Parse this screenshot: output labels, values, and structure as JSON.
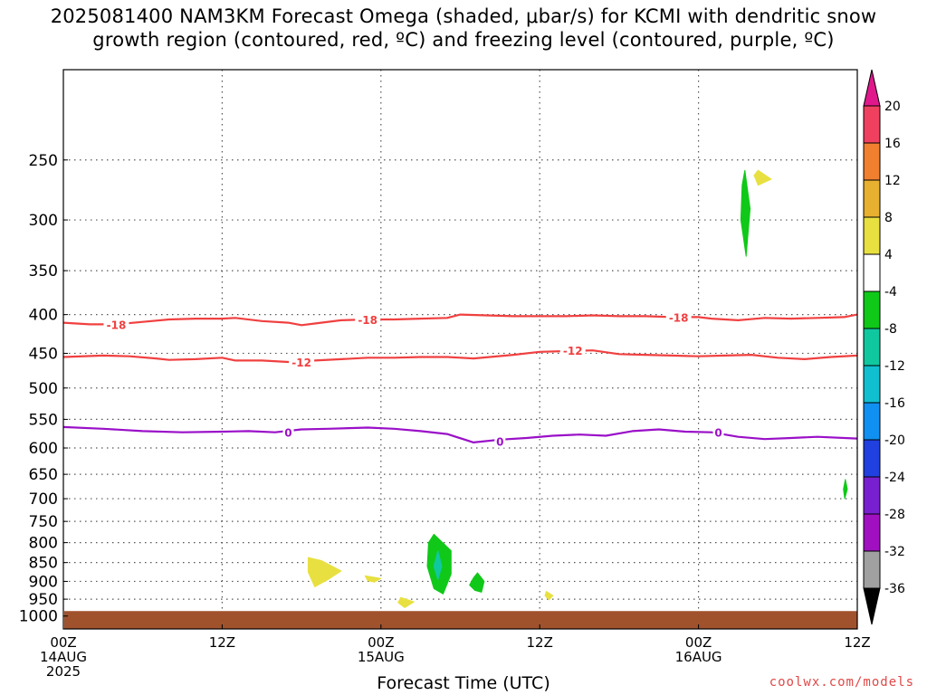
{
  "title": {
    "line1": "2025081400 NAM3KM Forecast Omega (shaded, μbar/s) for KCMI with dendritic snow",
    "line2": "growth region (contoured, red, ºC) and freezing level (contoured, purple, ºC)"
  },
  "footer": {
    "xlabel": "Forecast Time (UTC)",
    "credit": "coolwx.com/models"
  },
  "chart_data": {
    "type": "heatmap",
    "x_axis": {
      "label": "Forecast Time (UTC)",
      "unit": "hours since 2025-08-14 00Z",
      "range": [
        0,
        60
      ],
      "ticks": [
        {
          "hour": 0,
          "lines": [
            "00Z",
            "14AUG",
            "2025"
          ]
        },
        {
          "hour": 12,
          "lines": [
            "12Z"
          ]
        },
        {
          "hour": 24,
          "lines": [
            "00Z",
            "15AUG"
          ]
        },
        {
          "hour": 36,
          "lines": [
            "12Z"
          ]
        },
        {
          "hour": 48,
          "lines": [
            "00Z",
            "16AUG"
          ]
        },
        {
          "hour": 60,
          "lines": [
            "12Z"
          ]
        }
      ]
    },
    "y_axis": {
      "unit": "hPa",
      "scale": "log",
      "inverted": true,
      "range": [
        1040,
        190
      ],
      "ticks": [
        250,
        300,
        350,
        400,
        450,
        500,
        550,
        600,
        650,
        700,
        750,
        800,
        850,
        900,
        950,
        1000
      ],
      "grid": true
    },
    "contours": {
      "minus18": {
        "label": "-18",
        "color": "#f04040",
        "points": [
          [
            0,
            410
          ],
          [
            2,
            412
          ],
          [
            4,
            412
          ],
          [
            6,
            409
          ],
          [
            8,
            406
          ],
          [
            10,
            405
          ],
          [
            12,
            405
          ],
          [
            13,
            404
          ],
          [
            15,
            408
          ],
          [
            17,
            410
          ],
          [
            18,
            413
          ],
          [
            19,
            411
          ],
          [
            21,
            407
          ],
          [
            23,
            406
          ],
          [
            25,
            406
          ],
          [
            27,
            405
          ],
          [
            29,
            404
          ],
          [
            30,
            400
          ],
          [
            32,
            401
          ],
          [
            34,
            402
          ],
          [
            36,
            402
          ],
          [
            38,
            402
          ],
          [
            40,
            401
          ],
          [
            42,
            402
          ],
          [
            44,
            402
          ],
          [
            46,
            403
          ],
          [
            48,
            403
          ],
          [
            49,
            405
          ],
          [
            51,
            407
          ],
          [
            53,
            404
          ],
          [
            55,
            405
          ],
          [
            57,
            404
          ],
          [
            59,
            403
          ],
          [
            60,
            400
          ]
        ],
        "label_positions": [
          [
            4,
            412
          ],
          [
            23,
            406
          ],
          [
            46.5,
            403
          ]
        ]
      },
      "minus12": {
        "label": "-12",
        "color": "#f04040",
        "points": [
          [
            0,
            455
          ],
          [
            3,
            453
          ],
          [
            5,
            454
          ],
          [
            7,
            457
          ],
          [
            8,
            459
          ],
          [
            10,
            458
          ],
          [
            12,
            456
          ],
          [
            13,
            460
          ],
          [
            15,
            460
          ],
          [
            17,
            462
          ],
          [
            19,
            460
          ],
          [
            21,
            458
          ],
          [
            23,
            456
          ],
          [
            25,
            456
          ],
          [
            27,
            455
          ],
          [
            29,
            455
          ],
          [
            31,
            457
          ],
          [
            34,
            452
          ],
          [
            36,
            448
          ],
          [
            38,
            447
          ],
          [
            40,
            446
          ],
          [
            42,
            451
          ],
          [
            44,
            452
          ],
          [
            46,
            453
          ],
          [
            48,
            454
          ],
          [
            50,
            453
          ],
          [
            52,
            452
          ],
          [
            54,
            456
          ],
          [
            56,
            458
          ],
          [
            58,
            455
          ],
          [
            60,
            453
          ]
        ],
        "label_positions": [
          [
            18,
            462
          ],
          [
            38.5,
            446
          ]
        ]
      },
      "zero": {
        "label": "0",
        "color": "#9a10c8",
        "points": [
          [
            0,
            563
          ],
          [
            3,
            566
          ],
          [
            6,
            570
          ],
          [
            9,
            572
          ],
          [
            12,
            571
          ],
          [
            14,
            570
          ],
          [
            16,
            572
          ],
          [
            18,
            567
          ],
          [
            20,
            566
          ],
          [
            23,
            564
          ],
          [
            25,
            566
          ],
          [
            27,
            570
          ],
          [
            29,
            575
          ],
          [
            31,
            590
          ],
          [
            33,
            585
          ],
          [
            35,
            582
          ],
          [
            37,
            578
          ],
          [
            39,
            576
          ],
          [
            41,
            578
          ],
          [
            43,
            570
          ],
          [
            45,
            567
          ],
          [
            47,
            571
          ],
          [
            49,
            572
          ],
          [
            51,
            580
          ],
          [
            53,
            584
          ],
          [
            55,
            582
          ],
          [
            57,
            580
          ],
          [
            60,
            583
          ]
        ],
        "label_positions": [
          [
            17,
            572
          ],
          [
            33,
            588
          ],
          [
            49.5,
            572
          ]
        ]
      }
    },
    "omega_areas": [
      {
        "color": "#e8e040",
        "value_range": "4 to 8",
        "points": [
          [
            18.5,
            837
          ],
          [
            19.5,
            845
          ],
          [
            21,
            872
          ],
          [
            20,
            895
          ],
          [
            19,
            915
          ],
          [
            18.5,
            875
          ]
        ]
      },
      {
        "color": "#e8e040",
        "value_range": "4 to 8",
        "points": [
          [
            22.8,
            885
          ],
          [
            24,
            892
          ],
          [
            23.5,
            902
          ],
          [
            23,
            898
          ]
        ]
      },
      {
        "color": "#e8e040",
        "value_range": "4 to 8",
        "points": [
          [
            25.5,
            945
          ],
          [
            26.5,
            958
          ],
          [
            25.8,
            975
          ],
          [
            25.3,
            960
          ]
        ]
      },
      {
        "color": "#e8e040",
        "value_range": "4 to 8",
        "points": [
          [
            36.5,
            928
          ],
          [
            37,
            940
          ],
          [
            36.7,
            952
          ],
          [
            36.4,
            940
          ]
        ]
      },
      {
        "color": "#e8e040",
        "value_range": "4 to 8",
        "points": [
          [
            52.5,
            258
          ],
          [
            53.5,
            265
          ],
          [
            52.5,
            270
          ],
          [
            52.2,
            262
          ]
        ]
      },
      {
        "color": "#10c818",
        "value_range": "-8 to -4",
        "points": [
          [
            28,
            780
          ],
          [
            29.3,
            820
          ],
          [
            29.3,
            880
          ],
          [
            28.7,
            935
          ],
          [
            28,
            920
          ],
          [
            27.5,
            860
          ],
          [
            27.6,
            800
          ]
        ]
      },
      {
        "color": "#10c818",
        "value_range": "-8 to -4",
        "points": [
          [
            31.3,
            877
          ],
          [
            31.8,
            900
          ],
          [
            31.6,
            930
          ],
          [
            31.1,
            925
          ],
          [
            30.7,
            910
          ],
          [
            31,
            890
          ]
        ]
      },
      {
        "color": "#10c818",
        "value_range": "-8 to -4",
        "points": [
          [
            51.5,
            258
          ],
          [
            51.9,
            290
          ],
          [
            51.6,
            335
          ],
          [
            51.2,
            300
          ],
          [
            51.3,
            270
          ]
        ]
      },
      {
        "color": "#10c818",
        "value_range": "-8 to -4",
        "points": [
          [
            59.1,
            660
          ],
          [
            59.25,
            680
          ],
          [
            59.05,
            700
          ],
          [
            58.95,
            680
          ]
        ]
      },
      {
        "color": "#10c8a0",
        "value_range": "-12 to -8",
        "points": [
          [
            28.3,
            820
          ],
          [
            28.6,
            860
          ],
          [
            28.3,
            895
          ],
          [
            28,
            860
          ]
        ]
      }
    ],
    "terrain": {
      "color": "#a0522d",
      "surface_pressure_hpa": 985
    },
    "colorbar": {
      "label_values": [
        20,
        16,
        12,
        8,
        4,
        -4,
        -8,
        -12,
        -16,
        -20,
        -24,
        -28,
        -32,
        -36
      ],
      "bins": [
        {
          "from": 20,
          "to": 16,
          "color": "#f04060"
        },
        {
          "from": 16,
          "to": 12,
          "color": "#f08030"
        },
        {
          "from": 12,
          "to": 8,
          "color": "#e8b030"
        },
        {
          "from": 8,
          "to": 4,
          "color": "#e8e040"
        },
        {
          "from": 4,
          "to": -4,
          "color": "#ffffff"
        },
        {
          "from": -4,
          "to": -8,
          "color": "#10c818"
        },
        {
          "from": -8,
          "to": -12,
          "color": "#10c8a0"
        },
        {
          "from": -12,
          "to": -16,
          "color": "#10c0d0"
        },
        {
          "from": -16,
          "to": -20,
          "color": "#1090f0"
        },
        {
          "from": -20,
          "to": -24,
          "color": "#2040e0"
        },
        {
          "from": -24,
          "to": -28,
          "color": "#7820d0"
        },
        {
          "from": -28,
          "to": -32,
          "color": "#a010c0"
        },
        {
          "from": -32,
          "to": -36,
          "color": "#a0a0a0"
        }
      ],
      "top_arrow_color": "#e0188c",
      "bottom_arrow_color": "#000000"
    }
  }
}
